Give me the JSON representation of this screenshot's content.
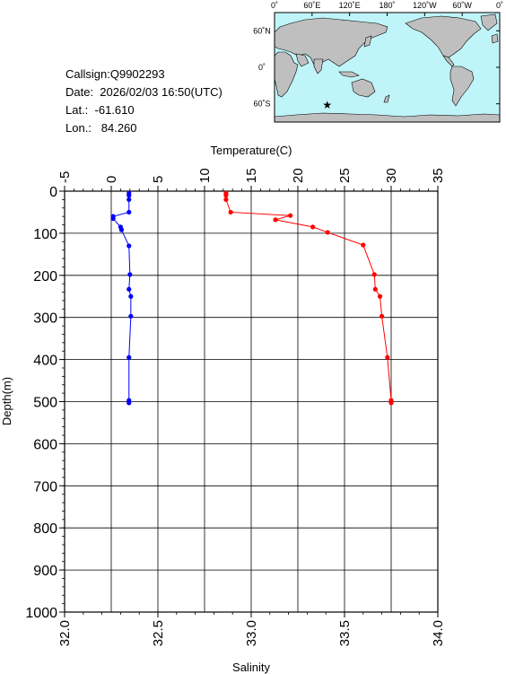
{
  "station": {
    "callsign": "Callsign:Q9902293",
    "date": "Date:  2026/02/03 16:50(UTC)",
    "lat": "Lat.:  -61.610",
    "lon": "Lon.:   84.260"
  },
  "map": {
    "top_ticks": [
      "0˚",
      "60˚E",
      "120˚E",
      "180˚",
      "120˚W",
      "60˚W",
      "0˚"
    ],
    "right_ticks": [
      "60˚N",
      "0˚",
      "60˚S"
    ],
    "ocean_color": "#bff4f8",
    "land_color": "#bfbfbf",
    "marker_color": "#ff0000",
    "marker_lon": 84.26,
    "marker_lat": -61.61
  },
  "chart_data": {
    "type": "line",
    "ylabel": "Depth(m)",
    "ylim": [
      0,
      1000
    ],
    "yticks": [
      "0",
      "100",
      "200",
      "300",
      "400",
      "500",
      "600",
      "700",
      "800",
      "900",
      "1000"
    ],
    "top_axis": {
      "label": "Temperature(C)",
      "lim": [
        -5,
        35
      ],
      "ticks": [
        "-5",
        "0",
        "5",
        "10",
        "15",
        "20",
        "25",
        "30",
        "35"
      ]
    },
    "bottom_axis": {
      "label": "Salinity",
      "lim": [
        32.0,
        34.0
      ],
      "ticks": [
        "32.0",
        "32.5",
        "33.0",
        "33.5",
        "34.0"
      ]
    },
    "grid": true,
    "series": [
      {
        "axis": "top",
        "color": "#0000ff",
        "points": [
          [
            1.9,
            5
          ],
          [
            1.9,
            10
          ],
          [
            1.9,
            20
          ],
          [
            1.9,
            50
          ],
          [
            0.2,
            60
          ],
          [
            0.2,
            65
          ],
          [
            1.0,
            85
          ],
          [
            1.1,
            92
          ],
          [
            1.9,
            130
          ],
          [
            2.0,
            198
          ],
          [
            1.9,
            233
          ],
          [
            2.1,
            250
          ],
          [
            2.1,
            297
          ],
          [
            1.9,
            395
          ],
          [
            1.9,
            497
          ],
          [
            1.9,
            503
          ]
        ]
      },
      {
        "axis": "bottom",
        "color": "#ff0000",
        "points": [
          [
            32.865,
            5
          ],
          [
            32.865,
            10
          ],
          [
            32.865,
            20
          ],
          [
            32.89,
            50
          ],
          [
            33.21,
            58
          ],
          [
            33.13,
            68
          ],
          [
            33.33,
            85
          ],
          [
            33.41,
            98
          ],
          [
            33.6,
            128
          ],
          [
            33.66,
            198
          ],
          [
            33.665,
            233
          ],
          [
            33.69,
            250
          ],
          [
            33.7,
            297
          ],
          [
            33.73,
            395
          ],
          [
            33.75,
            497
          ],
          [
            33.75,
            503
          ]
        ]
      }
    ]
  }
}
